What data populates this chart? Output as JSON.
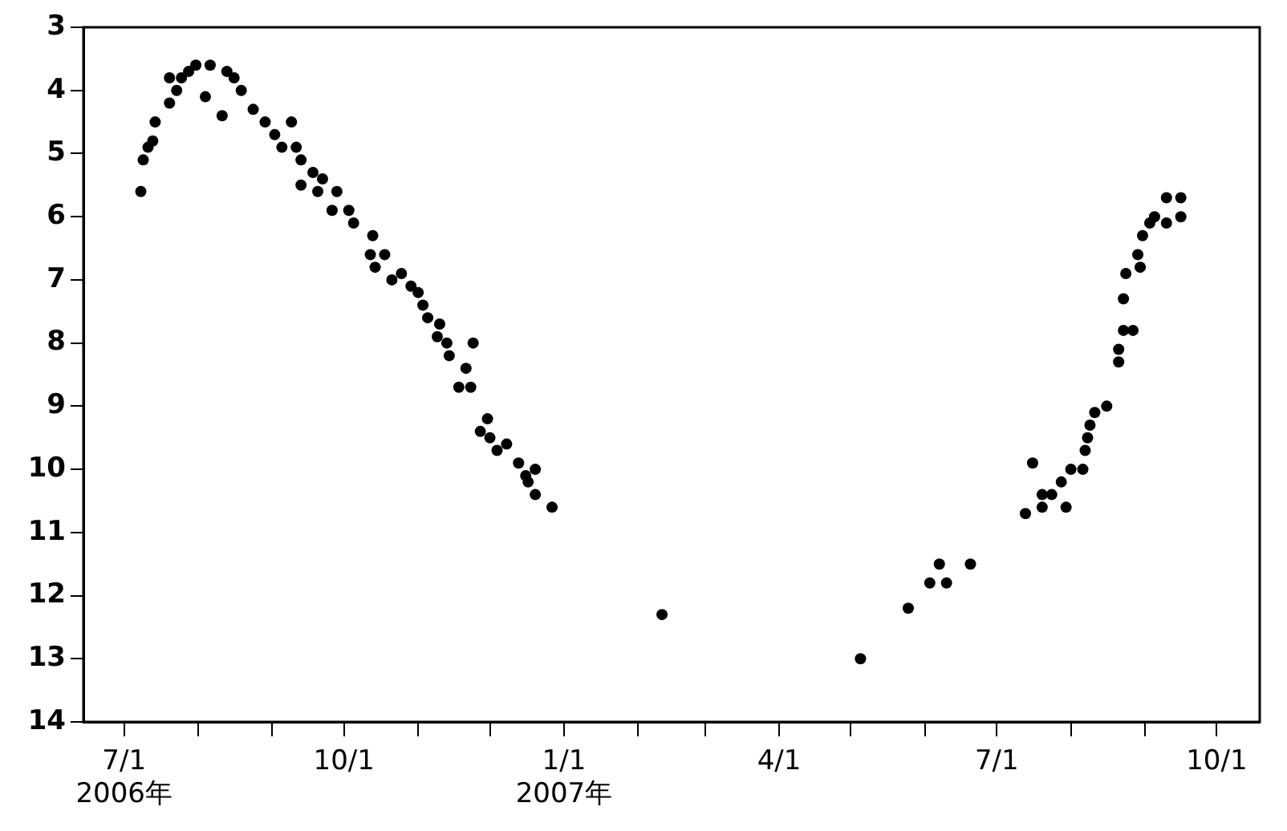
{
  "chart_data": {
    "type": "scatter",
    "marker": "circle",
    "grid": false,
    "legend": false,
    "xlim": [
      "2006-06-14",
      "2007-10-19"
    ],
    "xticks": [
      {
        "value": "2006-07-01",
        "label": "7/1\n2006年"
      },
      {
        "value": "2006-08-01",
        "label": null
      },
      {
        "value": "2006-09-01",
        "label": null
      },
      {
        "value": "2006-10-01",
        "label": "10/1"
      },
      {
        "value": "2006-11-01",
        "label": null
      },
      {
        "value": "2006-12-01",
        "label": null
      },
      {
        "value": "2007-01-01",
        "label": "1/1\n2007年"
      },
      {
        "value": "2007-02-01",
        "label": null
      },
      {
        "value": "2007-03-01",
        "label": null
      },
      {
        "value": "2007-04-01",
        "label": "4/1"
      },
      {
        "value": "2007-05-01",
        "label": null
      },
      {
        "value": "2007-06-01",
        "label": null
      },
      {
        "value": "2007-07-01",
        "label": "7/1"
      },
      {
        "value": "2007-08-01",
        "label": null
      },
      {
        "value": "2007-09-01",
        "label": null
      },
      {
        "value": "2007-10-01",
        "label": "10/1"
      }
    ],
    "ylim": [
      14,
      3
    ],
    "yticks": [
      3,
      4,
      5,
      6,
      7,
      8,
      9,
      10,
      11,
      12,
      13,
      14
    ],
    "series": [
      {
        "color": "#000000",
        "x": [
          "2006-07-08",
          "2006-07-09",
          "2006-07-11",
          "2006-07-13",
          "2006-07-14",
          "2006-07-20",
          "2006-07-20",
          "2006-07-23",
          "2006-07-25",
          "2006-07-28",
          "2006-07-31",
          "2006-08-04",
          "2006-08-06",
          "2006-08-11",
          "2006-08-13",
          "2006-08-16",
          "2006-08-19",
          "2006-08-24",
          "2006-08-29",
          "2006-09-02",
          "2006-09-05",
          "2006-09-09",
          "2006-09-11",
          "2006-09-13",
          "2006-09-13",
          "2006-09-18",
          "2006-09-20",
          "2006-09-22",
          "2006-09-26",
          "2006-09-28",
          "2006-10-03",
          "2006-10-05",
          "2006-10-12",
          "2006-10-13",
          "2006-10-14",
          "2006-10-18",
          "2006-10-21",
          "2006-10-25",
          "2006-10-29",
          "2006-11-01",
          "2006-11-03",
          "2006-11-05",
          "2006-11-09",
          "2006-11-10",
          "2006-11-13",
          "2006-11-14",
          "2006-11-18",
          "2006-11-21",
          "2006-11-23",
          "2006-11-24",
          "2006-11-27",
          "2006-11-30",
          "2006-12-01",
          "2006-12-04",
          "2006-12-08",
          "2006-12-13",
          "2006-12-16",
          "2006-12-17",
          "2006-12-20",
          "2006-12-20",
          "2006-12-27",
          "2007-02-11",
          "2007-05-05",
          "2007-05-25",
          "2007-06-03",
          "2007-06-07",
          "2007-06-10",
          "2007-06-20",
          "2007-07-13",
          "2007-07-16",
          "2007-07-20",
          "2007-07-20",
          "2007-07-24",
          "2007-07-28",
          "2007-07-30",
          "2007-08-01",
          "2007-08-06",
          "2007-08-07",
          "2007-08-08",
          "2007-08-09",
          "2007-08-11",
          "2007-08-16",
          "2007-08-21",
          "2007-08-21",
          "2007-08-23",
          "2007-08-23",
          "2007-08-24",
          "2007-08-27",
          "2007-08-29",
          "2007-08-30",
          "2007-08-31",
          "2007-09-03",
          "2007-09-05",
          "2007-09-10",
          "2007-09-10",
          "2007-09-16",
          "2007-09-16"
        ],
        "values": [
          5.6,
          5.1,
          4.9,
          4.8,
          4.5,
          3.8,
          4.2,
          4.0,
          3.8,
          3.7,
          3.6,
          4.1,
          3.6,
          4.4,
          3.7,
          3.8,
          4.0,
          4.3,
          4.5,
          4.7,
          4.9,
          4.5,
          4.9,
          5.1,
          5.5,
          5.3,
          5.6,
          5.4,
          5.9,
          5.6,
          5.9,
          6.1,
          6.6,
          6.3,
          6.8,
          6.6,
          7.0,
          6.9,
          7.1,
          7.2,
          7.4,
          7.6,
          7.9,
          7.7,
          8.0,
          8.2,
          8.7,
          8.4,
          8.7,
          8.0,
          9.4,
          9.2,
          9.5,
          9.7,
          9.6,
          9.9,
          10.1,
          10.2,
          10.0,
          10.4,
          10.6,
          12.3,
          13.0,
          12.2,
          11.8,
          11.5,
          11.8,
          11.5,
          10.7,
          9.9,
          10.6,
          10.4,
          10.4,
          10.2,
          10.6,
          10.0,
          10.0,
          9.7,
          9.5,
          9.3,
          9.1,
          9.0,
          8.3,
          8.1,
          7.8,
          7.3,
          6.9,
          7.8,
          6.6,
          6.8,
          6.3,
          6.1,
          6.0,
          5.7,
          6.1,
          5.7,
          6.0
        ]
      }
    ]
  }
}
